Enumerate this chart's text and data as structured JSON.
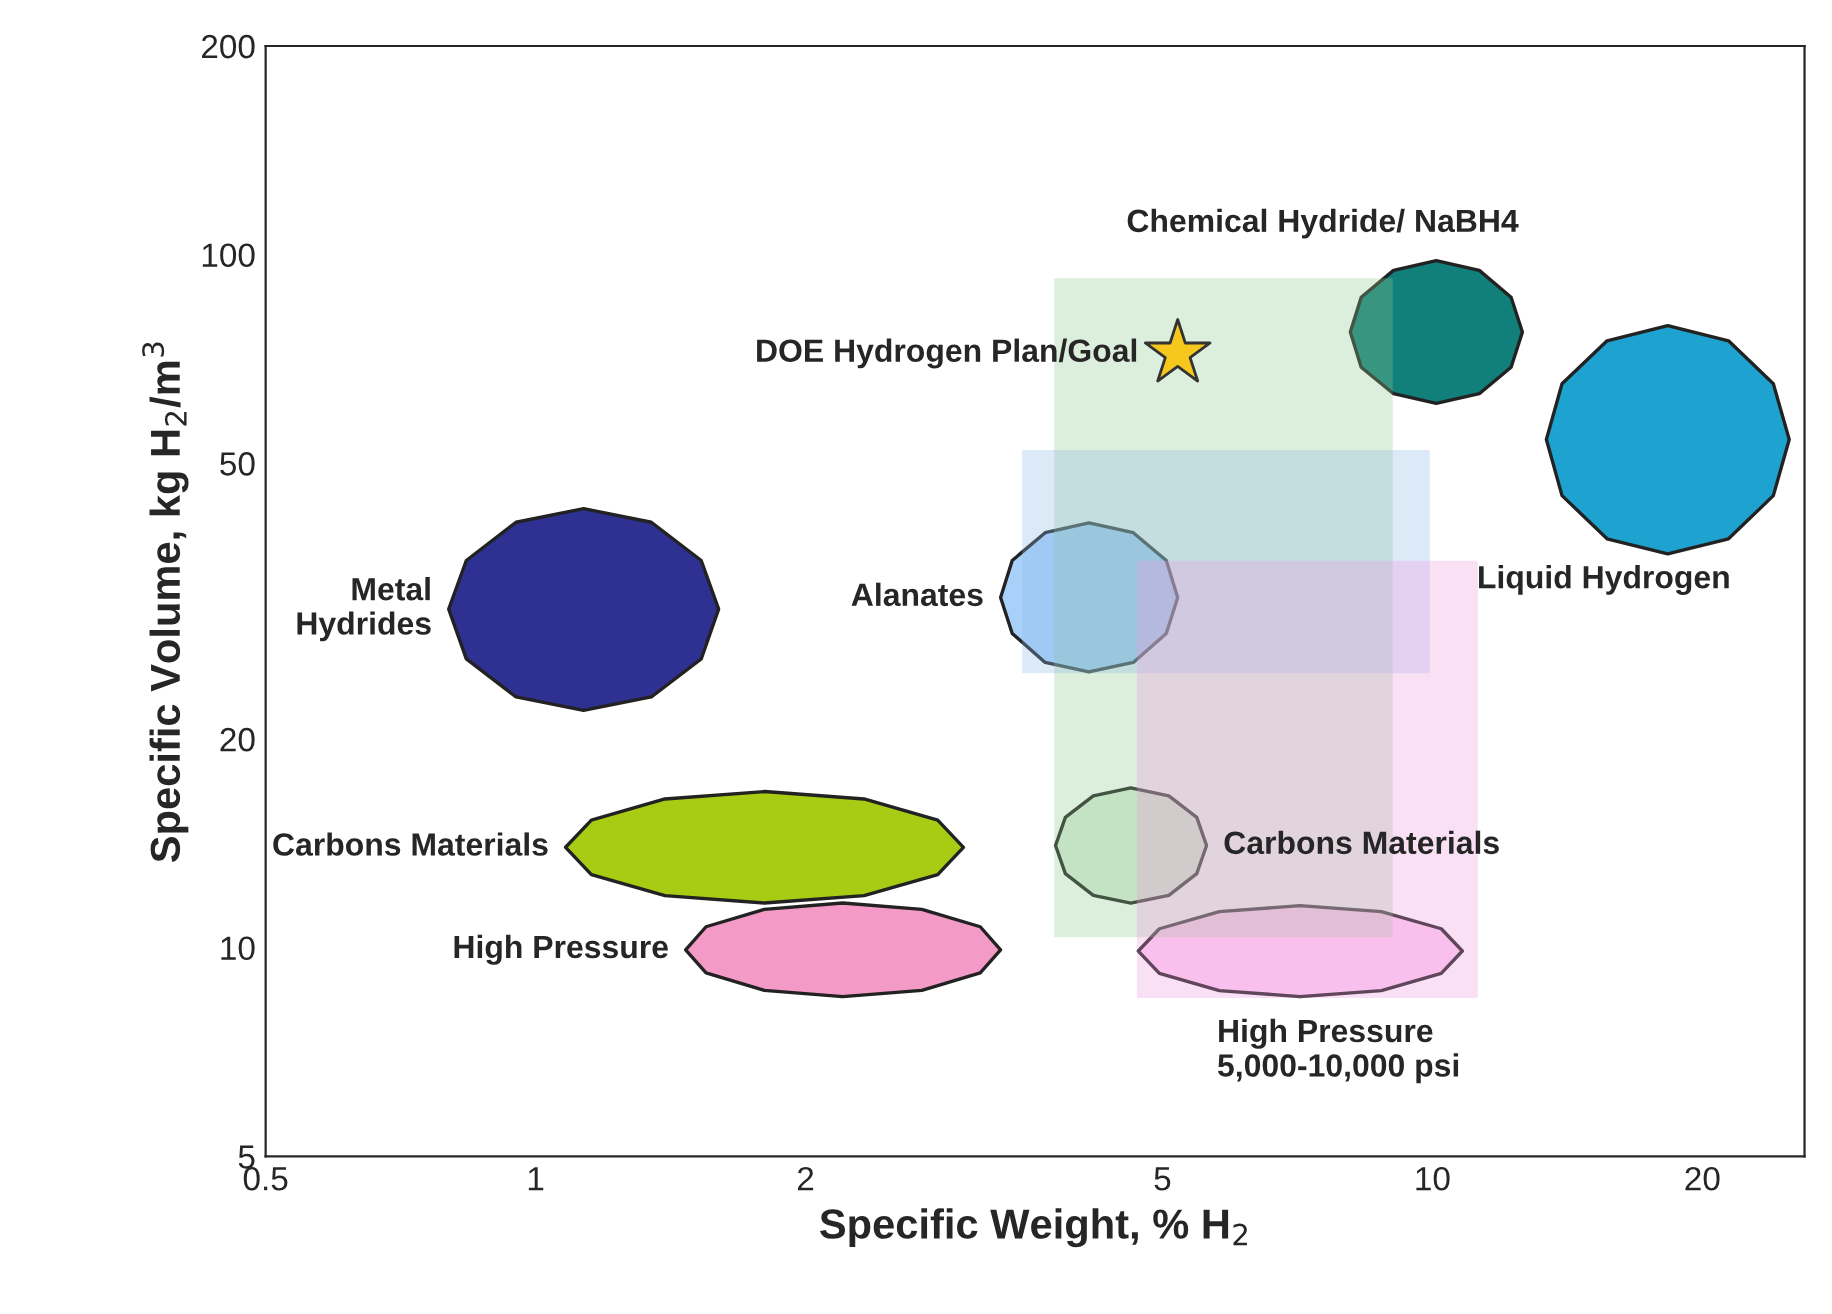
{
  "chart_data": {
    "type": "area",
    "xlabel": "Specific Weight, % H$_{2}$",
    "ylabel": "Specific Volume, kg H$_{2}$/m$^{3}$",
    "log": "xy",
    "xlim": [
      0.5,
      26
    ],
    "ylim": [
      5,
      200
    ],
    "xticks": [
      0.5,
      1,
      2,
      5,
      10,
      20
    ],
    "yticks": [
      5,
      10,
      20,
      50,
      100,
      200
    ],
    "grid": false,
    "legend": false,
    "series": [
      {
        "name": "Metal\nHydrides",
        "color": "#2e3192",
        "x": [
          0.8,
          0.837,
          0.951,
          1.131,
          1.346,
          1.53,
          1.6,
          1.53,
          1.346,
          1.131,
          0.951,
          0.837
        ],
        "values": [
          30.8,
          36.2,
          41.1,
          43,
          41.1,
          36.2,
          30.8,
          26.1,
          23,
          22,
          23,
          26.1
        ]
      },
      {
        "name": "Alanates",
        "color": "#a8d0f8",
        "x": [
          3.3,
          3.4,
          3.7,
          4.14,
          4.64,
          5.05,
          5.2,
          5.05,
          4.64,
          4.14,
          3.7,
          3.4
        ],
        "values": [
          32,
          36.2,
          39.7,
          41,
          39.7,
          36.2,
          32,
          28.4,
          25.8,
          25,
          25.8,
          28.4
        ]
      },
      {
        "name": "Chemical Hydride/ NaBH4",
        "color": "#12807a",
        "x": [
          8.1,
          8.33,
          9.05,
          10.1,
          11.28,
          12.24,
          12.6,
          12.24,
          11.28,
          10.1,
          9.05,
          8.33
        ],
        "values": [
          77.3,
          86.8,
          94.9,
          98,
          94.9,
          86.8,
          77.3,
          68.8,
          63,
          61,
          63,
          68.8
        ]
      },
      {
        "name": "Liquid Hydrogen",
        "color": "#1ea2cf",
        "x": [
          13.4,
          13.95,
          15.66,
          18.3,
          21.39,
          24,
          25,
          24,
          21.39,
          18.3,
          15.66,
          13.95
        ],
        "values": [
          54.1,
          65.1,
          75.1,
          79,
          75.1,
          65.1,
          54.1,
          44.9,
          38.9,
          37,
          38.9,
          44.9
        ]
      },
      {
        "name": "Carbons Materials",
        "color": "#a8cc14",
        "x": [
          1.08,
          1.154,
          1.394,
          1.8,
          2.324,
          2.808,
          3.0,
          2.808,
          2.324,
          1.8,
          1.394,
          1.154
        ],
        "values": [
          13.96,
          15.28,
          16.39,
          16.8,
          16.39,
          15.28,
          13.96,
          12.75,
          11.89,
          11.6,
          11.89,
          12.75
        ]
      },
      {
        "name": "High Pressure",
        "color": "#f39ac6",
        "x": [
          1.47,
          1.549,
          1.799,
          2.2,
          2.696,
          3.132,
          3.3,
          3.132,
          2.696,
          2.2,
          1.799,
          1.549
        ],
        "values": [
          9.93,
          10.72,
          11.36,
          11.6,
          11.36,
          10.72,
          9.93,
          9.2,
          8.68,
          8.5,
          8.68,
          9.2
        ]
      },
      {
        "name": "Carbons Materials",
        "color": "#dcefdc",
        "x": [
          3.8,
          3.897,
          4.187,
          4.61,
          5.083,
          5.461,
          5.6,
          5.461,
          5.083,
          4.61,
          4.187,
          3.897
        ],
        "values": [
          14.04,
          15.42,
          16.56,
          17,
          16.56,
          15.42,
          14.04,
          12.79,
          11.9,
          11.6,
          11.9,
          12.79
        ]
      },
      {
        "name": "High Pressure\n5,000-10,000 psi",
        "color": "#ffd2f5",
        "x": [
          4.7,
          4.961,
          5.787,
          7.12,
          8.772,
          10.23,
          10.8,
          10.23,
          8.772,
          7.12,
          5.787,
          4.961
        ],
        "values": [
          9.89,
          10.65,
          11.27,
          11.5,
          11.27,
          10.65,
          9.89,
          9.18,
          8.67,
          8.5,
          8.67,
          9.18
        ]
      },
      {
        "name": "DOE Hydrogen Plan/Goal",
        "type": "scatter",
        "color": "#f6c81e",
        "x": [
          5.2
        ],
        "values": [
          72
        ],
        "marker": "star"
      },
      {
        "color": "#8fc88f",
        "x": [
          3.8,
          9.0,
          9.0,
          3.8
        ],
        "values": [
          92,
          92,
          10.4,
          10.4
        ]
      },
      {
        "color": "#8fbbea",
        "x": [
          3.5,
          9.9,
          9.9,
          3.5
        ],
        "values": [
          52,
          52,
          25,
          25
        ]
      },
      {
        "color": "#f09ade",
        "x": [
          4.7,
          11.2,
          11.2,
          4.7
        ],
        "values": [
          36,
          36,
          8.5,
          8.5
        ]
      }
    ]
  }
}
